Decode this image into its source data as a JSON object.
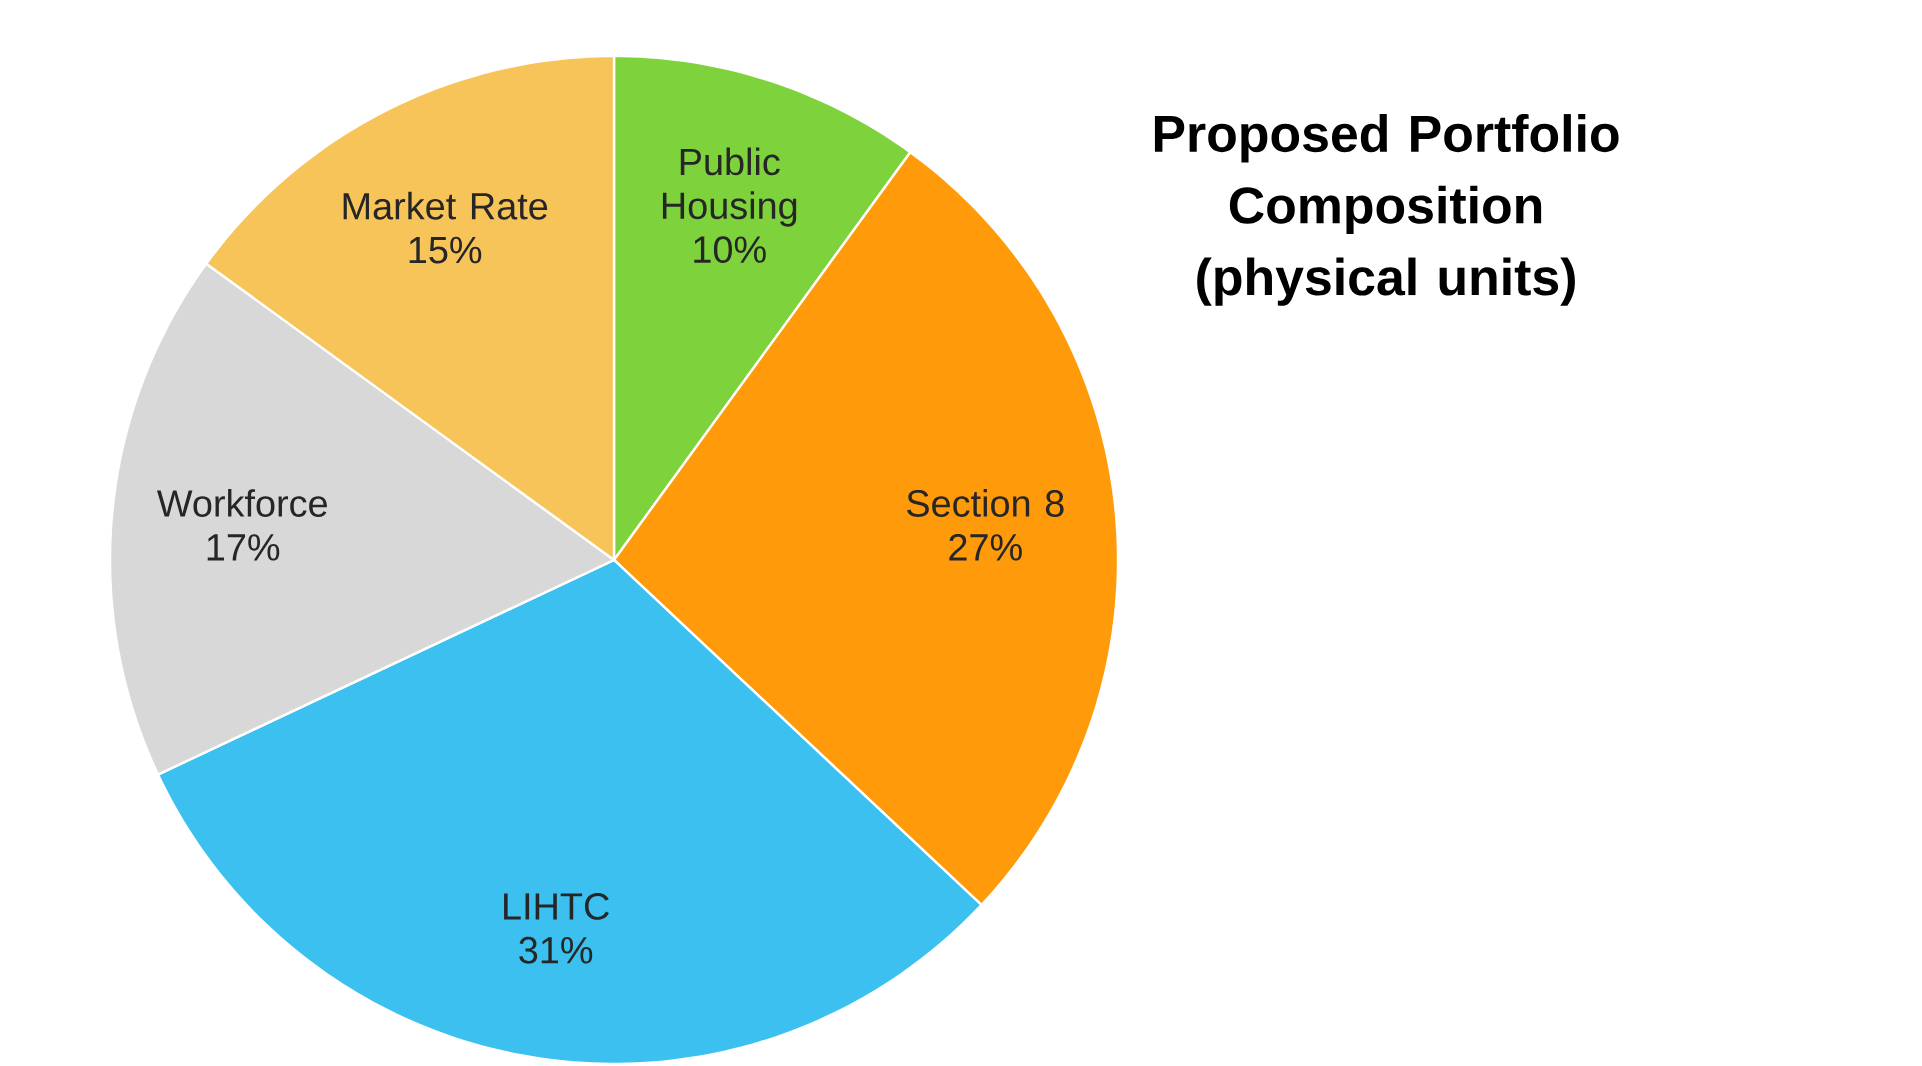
{
  "chart_data": {
    "type": "pie",
    "title": "Proposed Portfolio Composition (physical units)",
    "categories": [
      "Public Housing",
      "Section 8",
      "LIHTC",
      "Workforce",
      "Market Rate"
    ],
    "values": [
      10,
      27,
      31,
      17,
      15
    ],
    "value_labels": [
      "10%",
      "27%",
      "31%",
      "17%",
      "15%"
    ],
    "colors": [
      "#7ed23c",
      "#ff9a0a",
      "#3cc0f0",
      "#d8d8d8",
      "#f7c45a"
    ]
  }
}
